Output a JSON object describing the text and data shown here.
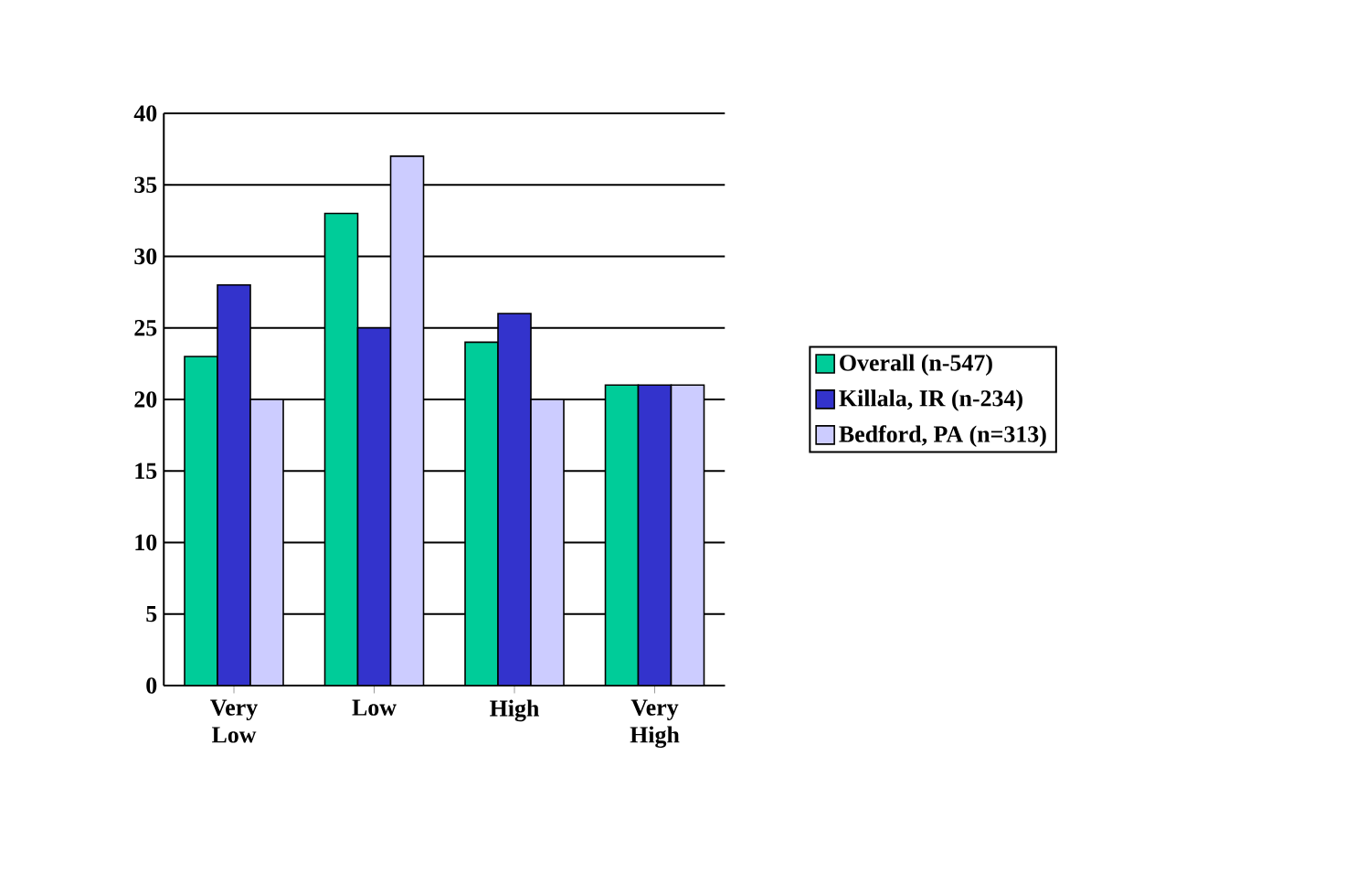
{
  "chart_data": {
    "type": "bar",
    "categories": [
      "Very Low",
      "Low",
      "High",
      "Very High"
    ],
    "series": [
      {
        "name": "Overall (n-547)",
        "color": "#00cc99",
        "values": [
          23,
          33,
          24,
          21
        ]
      },
      {
        "name": "Killala, IR (n-234)",
        "color": "#3333cc",
        "values": [
          28,
          25,
          26,
          21
        ]
      },
      {
        "name": "Bedford, PA (n=313)",
        "color": "#ccccff",
        "values": [
          20,
          37,
          20,
          21
        ]
      }
    ],
    "ylim": [
      0,
      40
    ],
    "yticks": [
      0,
      5,
      10,
      15,
      20,
      25,
      30,
      35,
      40
    ],
    "grid": "y",
    "legend": "right"
  }
}
